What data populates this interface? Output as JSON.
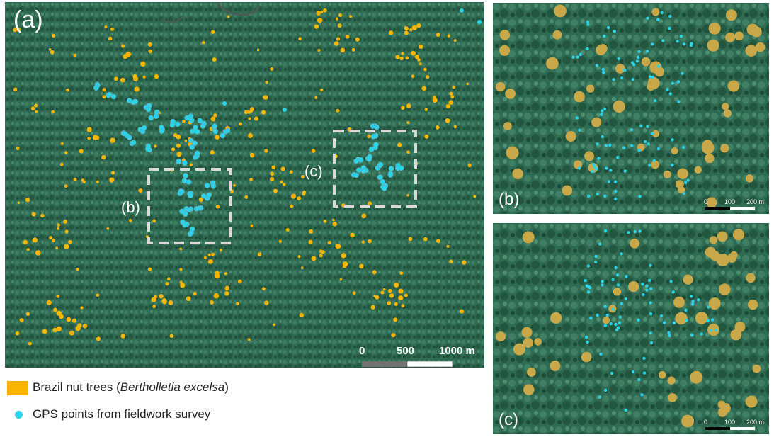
{
  "panels": {
    "a": {
      "label": "(a)",
      "inset_b_label": "(b)",
      "inset_c_label": "(c)",
      "scale": {
        "ticks": [
          "0",
          "500",
          "1000 m"
        ]
      }
    },
    "b": {
      "label": "(b)",
      "scale": {
        "ticks": [
          "0",
          "100",
          "200 m"
        ]
      }
    },
    "c": {
      "label": "(c)",
      "scale": {
        "ticks": [
          "0",
          "100",
          "200 m"
        ]
      }
    }
  },
  "legend": {
    "brazil_nut": {
      "prefix": "Brazil nut trees (",
      "species": "Bertholletia excelsa",
      "suffix": ")"
    },
    "gps": "GPS points from fieldwork survey"
  },
  "colors": {
    "canopy": "#2f6a52",
    "brazil_nut": "#f7b500",
    "gps": "#29d3ea",
    "inset_box": "#d9d9d9"
  }
}
